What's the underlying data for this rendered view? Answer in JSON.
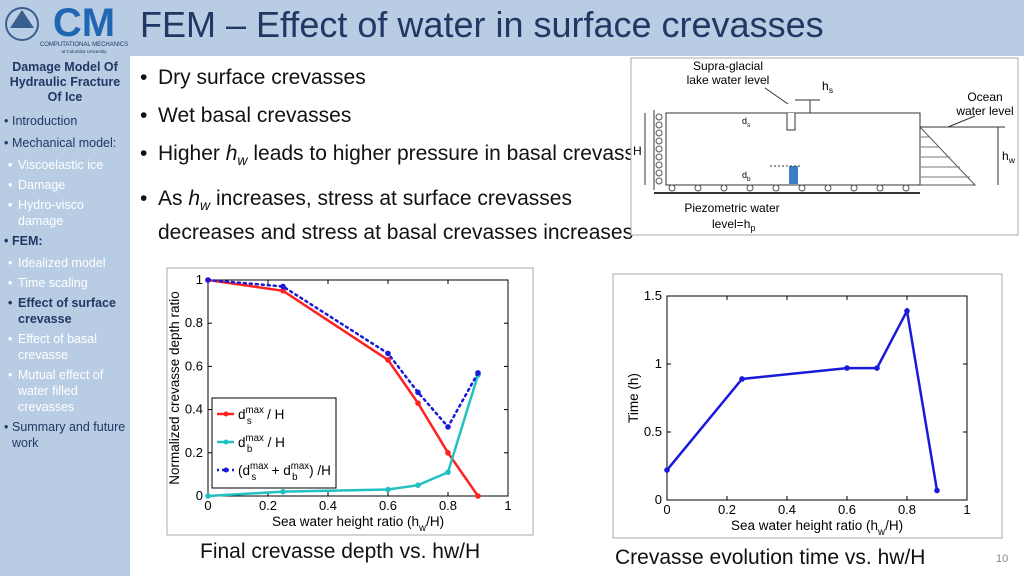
{
  "logo": {
    "mark": "CM",
    "line1": "COMPUTATIONAL MECHANICS",
    "line2": "at Columbia University"
  },
  "header": {
    "title": "FEM – Effect of water in surface crevasses"
  },
  "sidebar": {
    "heading": "Damage Model Of Hydraulic Fracture Of Ice",
    "active_item": 2,
    "active_child": 2,
    "items": [
      {
        "text": "Introduction"
      },
      {
        "text": "Mechanical model:",
        "children": [
          "Viscoelastic ice",
          "Damage",
          "Hydro-visco damage"
        ]
      },
      {
        "text": "FEM:",
        "children": [
          "Idealized model",
          "Time scaling",
          "Effect of surface crevasse",
          "Effect of basal crevasse",
          "Mutual effect of water filled crevasses"
        ]
      },
      {
        "text": "Summary and future work"
      }
    ]
  },
  "bullets": [
    [
      {
        "t": "Dry surface crevasses"
      }
    ],
    [
      {
        "t": "Wet basal crevasses"
      }
    ],
    [
      {
        "t": "Higher "
      },
      {
        "i": "h",
        "sub": "w"
      },
      {
        "t": " leads to higher pressure in basal crevasse"
      }
    ],
    [
      {
        "t": "As "
      },
      {
        "i": "h",
        "sub": "w"
      },
      {
        "t": " increases, stress at surface crevasses decreases and stress at basal crevasses increases"
      }
    ]
  ],
  "diagram": {
    "lake": [
      "Supra-glacial",
      "lake water level"
    ],
    "hs": {
      "base": "h",
      "sub": "s"
    },
    "ocean": [
      "Ocean",
      "water level"
    ],
    "ds": {
      "base": "d",
      "sub": "s"
    },
    "H": "H",
    "hw": {
      "base": "h",
      "sub": "w"
    },
    "db": {
      "base": "d",
      "sub": "b"
    },
    "piezo": [
      "Piezometric water",
      "level=h",
      "p"
    ]
  },
  "chart_data": [
    {
      "type": "line",
      "ylabel": "Normalized crevasse depth ratio",
      "xlabel": [
        {
          "t": "Sea water height ratio (h"
        },
        {
          "sub": "w"
        },
        {
          "t": "/H)"
        }
      ],
      "x": [
        0,
        0.25,
        0.6,
        0.7,
        0.8,
        0.9
      ],
      "xlim": [
        0,
        1
      ],
      "xticks": [
        0,
        0.2,
        0.4,
        0.6,
        0.8,
        1
      ],
      "ylim": [
        0,
        1
      ],
      "yticks": [
        0,
        0.2,
        0.4,
        0.6,
        0.8,
        1
      ],
      "legend": "lower left",
      "series": [
        {
          "name": [
            {
              "t": "d"
            },
            {
              "sup": "max"
            },
            {
              "sub": "s"
            },
            {
              "t": " / H"
            }
          ],
          "color": "#ff2020",
          "style": "solid",
          "values": [
            1,
            0.95,
            0.63,
            0.43,
            0.2,
            0
          ]
        },
        {
          "name": [
            {
              "t": "d"
            },
            {
              "sup": "max"
            },
            {
              "sub": "b"
            },
            {
              "t": " / H"
            }
          ],
          "color": "#22c1c1",
          "style": "solid",
          "values": [
            0,
            0.02,
            0.03,
            0.05,
            0.11,
            0.56
          ]
        },
        {
          "name": [
            {
              "t": "(d"
            },
            {
              "sup": "max"
            },
            {
              "sub": "s"
            },
            {
              "t": " + d"
            },
            {
              "sup": "max"
            },
            {
              "sub": "b"
            },
            {
              "t": ") /H"
            }
          ],
          "color": "#1a1adb",
          "style": "dotted",
          "values": [
            1,
            0.97,
            0.66,
            0.48,
            0.32,
            0.57
          ]
        }
      ]
    },
    {
      "type": "line",
      "ylabel": "Time (h)",
      "xlabel": [
        {
          "t": "Sea water height ratio (h"
        },
        {
          "sub": "w"
        },
        {
          "t": "/H)"
        }
      ],
      "x": [
        0,
        0.25,
        0.6,
        0.7,
        0.8,
        0.9
      ],
      "xlim": [
        0,
        1
      ],
      "xticks": [
        0,
        0.2,
        0.4,
        0.6,
        0.8,
        1
      ],
      "ylim": [
        0,
        1.5
      ],
      "yticks": [
        0,
        0.5,
        1,
        1.5
      ],
      "series": [
        {
          "color": "#1a1adb",
          "style": "solid",
          "values": [
            0.22,
            0.89,
            0.97,
            0.97,
            1.39,
            0.07
          ]
        }
      ]
    }
  ],
  "captions": [
    "Final crevasse depth vs. hw/H",
    "Crevasse evolution time vs. hw/H"
  ],
  "page_number": "10"
}
